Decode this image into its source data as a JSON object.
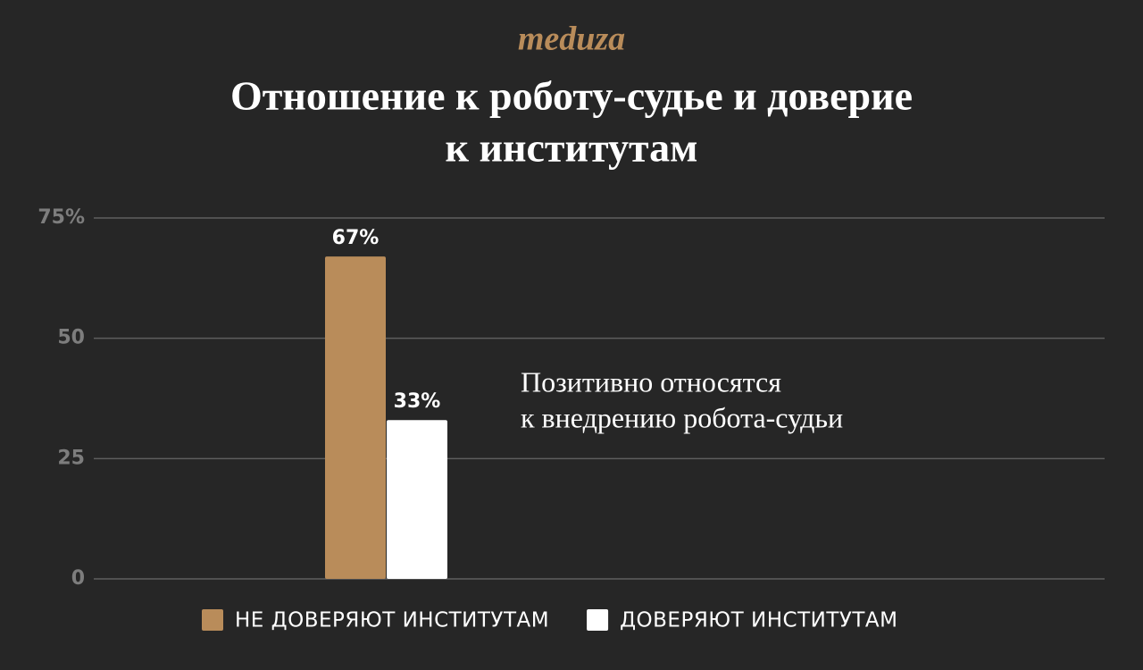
{
  "logo": "meduza",
  "chart_data": {
    "type": "bar",
    "title": [
      "Отношение к роботу-судье и доверие",
      "к институтам"
    ],
    "annotation": [
      "Позитивно относятся",
      "к внедрению робота-судьи"
    ],
    "categories": [
      null
    ],
    "series": [
      {
        "name": "НЕ ДОВЕРЯЮТ ИНСТИТУТАМ",
        "color": "#b98c5a",
        "values": [
          67
        ],
        "value_labels": [
          "67%"
        ]
      },
      {
        "name": "ДОВЕРЯЮТ ИНСТИТУТАМ",
        "color": "#ffffff",
        "values": [
          33
        ],
        "value_labels": [
          "33%"
        ]
      }
    ],
    "ylim": [
      0,
      75
    ],
    "yticks": [
      0,
      25,
      50,
      {
        "value": 75,
        "label": "75%"
      }
    ],
    "grid": true
  }
}
